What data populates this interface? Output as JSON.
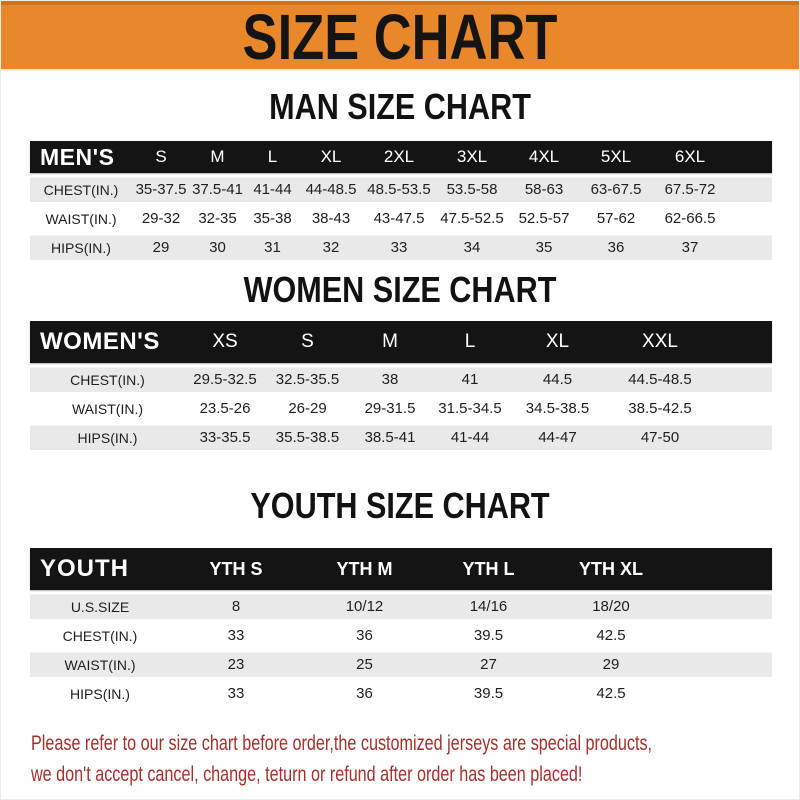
{
  "banner": {
    "title": "SIZE CHART",
    "bg_color": "#E9882A",
    "text_color": "#141414"
  },
  "sections": [
    {
      "title": "MAN SIZE CHART",
      "header_label": "MEN'S",
      "columns": [
        "S",
        "M",
        "L",
        "XL",
        "2XL",
        "3XL",
        "4XL",
        "5XL",
        "6XL"
      ],
      "rows": [
        {
          "label": "CHEST(IN.)",
          "values": [
            "35-37.5",
            "37.5-41",
            "41-44",
            "44-48.5",
            "48.5-53.5",
            "53.5-58",
            "58-63",
            "63-67.5",
            "67.5-72"
          ]
        },
        {
          "label": "WAIST(IN.)",
          "values": [
            "29-32",
            "32-35",
            "35-38",
            "38-43",
            "43-47.5",
            "47.5-52.5",
            "52.5-57",
            "57-62",
            "62-66.5"
          ]
        },
        {
          "label": "HIPS(IN.)",
          "values": [
            "29",
            "30",
            "31",
            "32",
            "33",
            "34",
            "35",
            "36",
            "37"
          ]
        }
      ]
    },
    {
      "title": "WOMEN SIZE CHART",
      "header_label": "WOMEN'S",
      "columns": [
        "XS",
        "S",
        "M",
        "L",
        "XL",
        "XXL"
      ],
      "rows": [
        {
          "label": "CHEST(IN.)",
          "values": [
            "29.5-32.5",
            "32.5-35.5",
            "38",
            "41",
            "44.5",
            "44.5-48.5"
          ]
        },
        {
          "label": "WAIST(IN.)",
          "values": [
            "23.5-26",
            "26-29",
            "29-31.5",
            "31.5-34.5",
            "34.5-38.5",
            "38.5-42.5"
          ]
        },
        {
          "label": "HIPS(IN.)",
          "values": [
            "33-35.5",
            "35.5-38.5",
            "38.5-41",
            "41-44",
            "44-47",
            "47-50"
          ]
        }
      ]
    },
    {
      "title": "YOUTH SIZE CHART",
      "header_label": "YOUTH",
      "columns": [
        "YTH S",
        "YTH M",
        "YTH L",
        "YTH XL"
      ],
      "rows": [
        {
          "label": "U.S.SIZE",
          "values": [
            "8",
            "10/12",
            "14/16",
            "18/20"
          ]
        },
        {
          "label": "CHEST(IN.)",
          "values": [
            "33",
            "36",
            "39.5",
            "42.5"
          ]
        },
        {
          "label": "WAIST(IN.)",
          "values": [
            "23",
            "25",
            "27",
            "29"
          ]
        },
        {
          "label": "HIPS(IN.)",
          "values": [
            "33",
            "36",
            "39.5",
            "42.5"
          ]
        }
      ]
    }
  ],
  "disclaimer": {
    "line1": "Please refer to our size chart before order,the customized jerseys are special products,",
    "line2": "we don't accept cancel, change, teturn or refund after order has been placed!",
    "color": "#A5302A"
  }
}
